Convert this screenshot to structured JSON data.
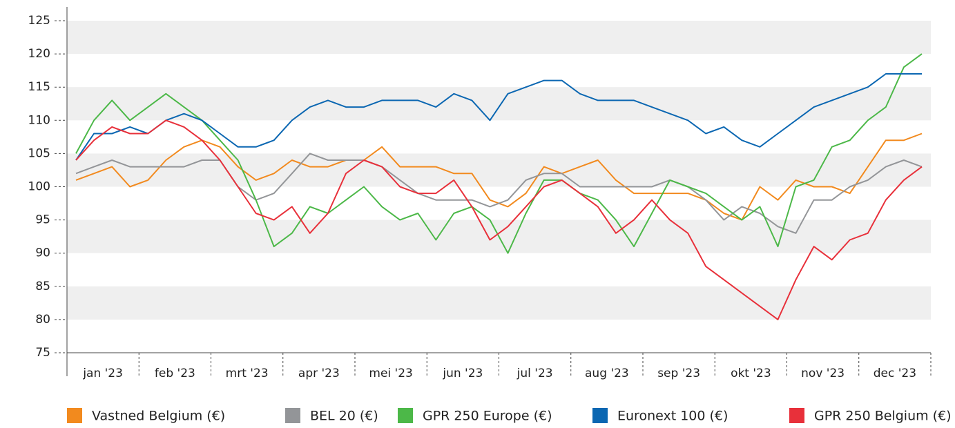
{
  "chart_data": {
    "type": "line",
    "categories": [
      null,
      "jan '23",
      null,
      null,
      null,
      "feb '23",
      null,
      null,
      null,
      "mrt '23",
      null,
      null,
      null,
      "apr '23",
      null,
      null,
      null,
      "mei '23",
      null,
      null,
      null,
      "jun '23",
      null,
      null,
      null,
      "jul '23",
      null,
      null,
      null,
      "aug '23",
      null,
      null,
      null,
      "sep '23",
      null,
      null,
      null,
      "okt '23",
      null,
      null,
      null,
      "nov '23",
      null,
      null,
      null,
      "dec '23",
      null,
      null
    ],
    "series": [
      {
        "name": "Vastned Belgium (€)",
        "color": "#f28a1e",
        "values": [
          101,
          102,
          103,
          100,
          101,
          104,
          106,
          107,
          106,
          103,
          101,
          102,
          104,
          103,
          103,
          104,
          104,
          106,
          103,
          103,
          103,
          102,
          102,
          98,
          97,
          99,
          103,
          102,
          103,
          104,
          101,
          99,
          99,
          99,
          99,
          98,
          96,
          95,
          100,
          98,
          101,
          100,
          100,
          99,
          103,
          107,
          107,
          108
        ]
      },
      {
        "name": "BEL 20 (€)",
        "color": "#939598",
        "values": [
          102,
          103,
          104,
          103,
          103,
          103,
          103,
          104,
          104,
          100,
          98,
          99,
          102,
          105,
          104,
          104,
          104,
          103,
          101,
          99,
          98,
          98,
          98,
          97,
          98,
          101,
          102,
          102,
          100,
          100,
          100,
          100,
          100,
          101,
          100,
          98,
          95,
          97,
          96,
          94,
          93,
          98,
          98,
          100,
          101,
          103,
          104,
          103
        ]
      },
      {
        "name": "GPR 250 Europe (€)",
        "color": "#4cb848",
        "values": [
          105,
          110,
          113,
          110,
          112,
          114,
          112,
          110,
          107,
          104,
          98,
          91,
          93,
          97,
          96,
          98,
          100,
          97,
          95,
          96,
          92,
          96,
          97,
          95,
          90,
          96,
          101,
          101,
          99,
          98,
          95,
          91,
          96,
          101,
          100,
          99,
          97,
          95,
          97,
          91,
          100,
          101,
          106,
          107,
          110,
          112,
          118,
          120
        ]
      },
      {
        "name": "Euronext 100 (€)",
        "color": "#0b67b2",
        "values": [
          104,
          108,
          108,
          109,
          108,
          110,
          111,
          110,
          108,
          106,
          106,
          107,
          110,
          112,
          113,
          112,
          112,
          113,
          113,
          113,
          112,
          114,
          113,
          110,
          114,
          115,
          116,
          116,
          114,
          113,
          113,
          113,
          112,
          111,
          110,
          108,
          109,
          107,
          106,
          108,
          110,
          112,
          113,
          114,
          115,
          117,
          117,
          117
        ]
      },
      {
        "name": "GPR 250 Belgium (€)",
        "color": "#e8303a",
        "values": [
          104,
          107,
          109,
          108,
          108,
          110,
          109,
          107,
          104,
          100,
          96,
          95,
          97,
          93,
          96,
          102,
          104,
          103,
          100,
          99,
          99,
          101,
          97,
          92,
          94,
          97,
          100,
          101,
          99,
          97,
          93,
          95,
          98,
          95,
          93,
          88,
          86,
          84,
          82,
          80,
          86,
          91,
          89,
          92,
          93,
          98,
          101,
          103
        ]
      }
    ],
    "ylim": [
      75,
      125
    ],
    "yticks": [
      75,
      80,
      85,
      90,
      95,
      100,
      105,
      110,
      115,
      120,
      125
    ],
    "grid": "bands",
    "legend": "bottom"
  }
}
